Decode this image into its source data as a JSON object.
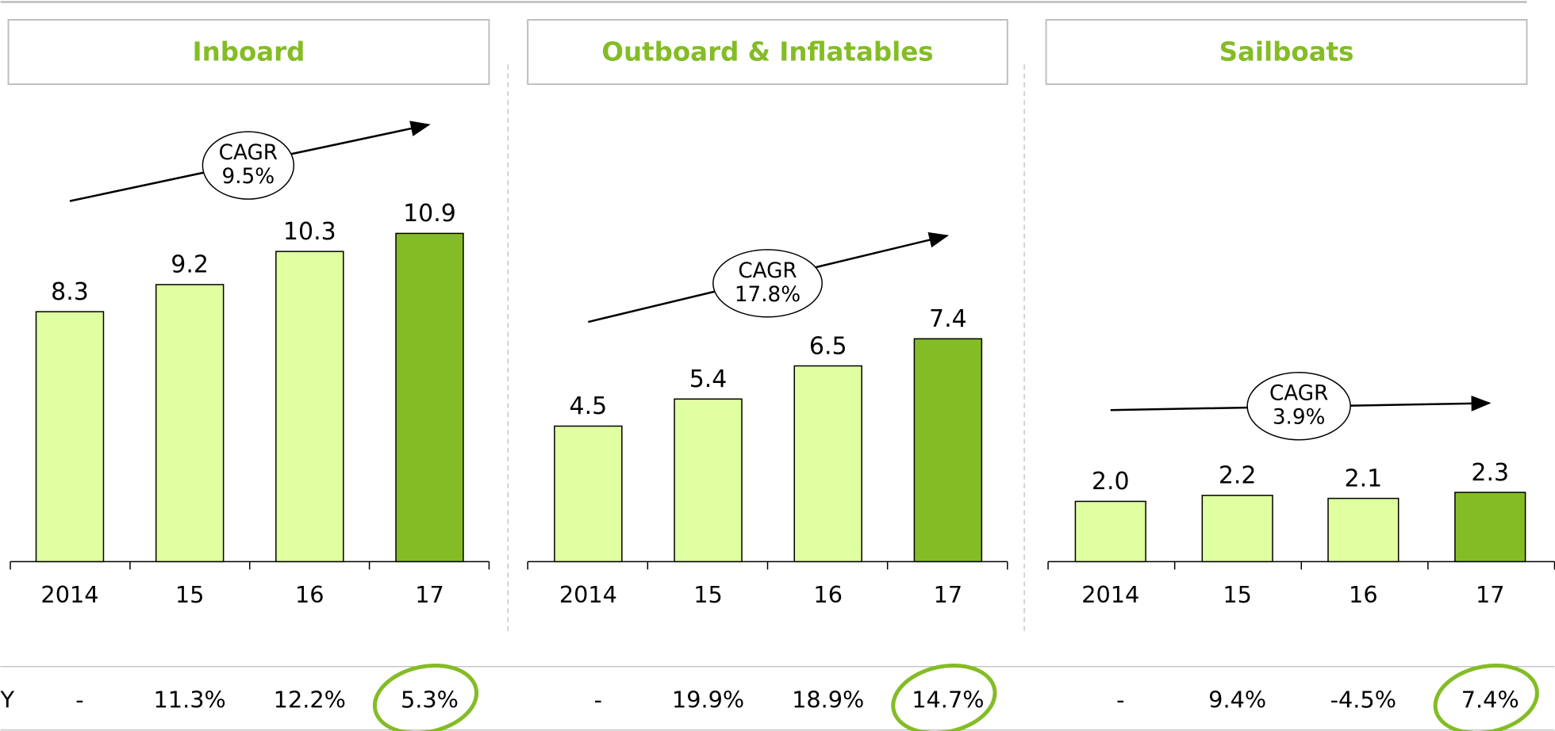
{
  "chart_data": [
    {
      "type": "bar",
      "title": "Inboard",
      "categories": [
        "2014",
        "15",
        "16",
        "17"
      ],
      "values": [
        8.3,
        9.2,
        10.3,
        10.9
      ],
      "value_labels": [
        "8.3",
        "9.2",
        "10.3",
        "10.9"
      ],
      "colors": [
        "#dfffa0",
        "#dfffa0",
        "#dfffa0",
        "#84bc26"
      ],
      "ylim": [
        0,
        15
      ],
      "annotation": [
        "CAGR",
        "9.5%"
      ],
      "growth_label": "Y",
      "growth": [
        "-",
        "11.3%",
        "12.2%",
        "5.3%"
      ]
    },
    {
      "type": "bar",
      "title": "Outboard & Inflatables",
      "categories": [
        "2014",
        "15",
        "16",
        "17"
      ],
      "values": [
        4.5,
        5.4,
        6.5,
        7.4
      ],
      "value_labels": [
        "4.5",
        "5.4",
        "6.5",
        "7.4"
      ],
      "colors": [
        "#dfffa0",
        "#dfffa0",
        "#dfffa0",
        "#84bc26"
      ],
      "ylim": [
        0,
        15
      ],
      "annotation": [
        "CAGR",
        "17.8%"
      ],
      "growth": [
        "-",
        "19.9%",
        "18.9%",
        "14.7%"
      ]
    },
    {
      "type": "bar",
      "title": "Sailboats",
      "categories": [
        "2014",
        "15",
        "16",
        "17"
      ],
      "values": [
        2.0,
        2.2,
        2.1,
        2.3
      ],
      "value_labels": [
        "2.0",
        "2.2",
        "2.1",
        "2.3"
      ],
      "colors": [
        "#dfffa0",
        "#dfffa0",
        "#dfffa0",
        "#84bc26"
      ],
      "ylim": [
        0,
        15
      ],
      "annotation": [
        "CAGR",
        "3.9%"
      ],
      "growth": [
        "-",
        "9.4%",
        "-4.5%",
        "7.4%"
      ]
    }
  ]
}
